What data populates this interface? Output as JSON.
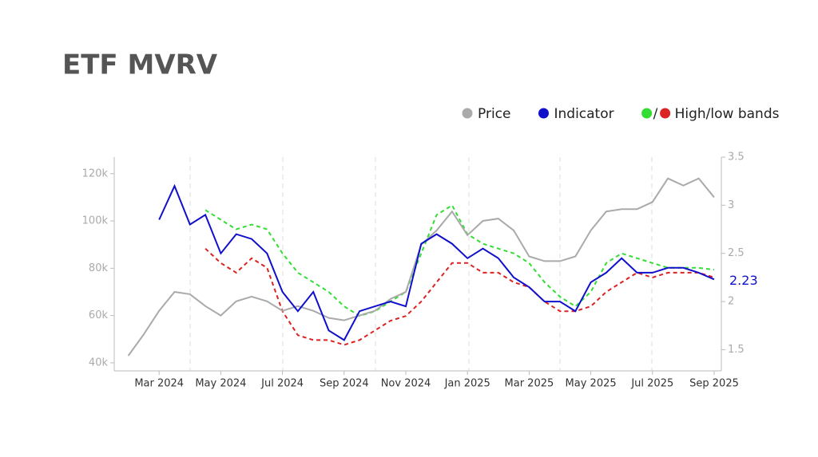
{
  "chart_data": {
    "type": "line",
    "title": "ETF MVRV",
    "categories": [
      null,
      null,
      "Mar 2024",
      null,
      null,
      null,
      "May 2024",
      null,
      null,
      null,
      "Jul 2024",
      null,
      null,
      null,
      "Sep 2024",
      null,
      null,
      null,
      "Nov 2024",
      null,
      null,
      null,
      "Jan 2025",
      null,
      null,
      null,
      "Mar 2025",
      null,
      null,
      null,
      "May 2025",
      null,
      null,
      null,
      "Jul 2025",
      null,
      null,
      null,
      "Sep 2025"
    ],
    "series": [
      {
        "name": "Price",
        "color": "#aaaaaa",
        "axis": "y",
        "values": [
          43000,
          52000,
          62000,
          70000,
          69000,
          64000,
          60000,
          66000,
          68000,
          66000,
          62000,
          64000,
          62000,
          59000,
          58000,
          60000,
          62000,
          67000,
          70000,
          90000,
          96000,
          104000,
          94000,
          100000,
          101000,
          96000,
          85000,
          83000,
          83000,
          85000,
          96000,
          104000,
          105000,
          105000,
          108000,
          118000,
          115000,
          118000,
          110000
        ]
      },
      {
        "name": "Indicator",
        "color": "#1010cc",
        "axis": "y2",
        "values": [
          null,
          null,
          2.85,
          3.2,
          2.8,
          2.9,
          2.5,
          2.7,
          2.65,
          2.5,
          2.1,
          1.9,
          2.1,
          1.7,
          1.6,
          1.9,
          1.95,
          2.0,
          1.95,
          2.6,
          2.7,
          2.6,
          2.45,
          2.55,
          2.45,
          2.25,
          2.15,
          2.0,
          2.0,
          1.9,
          2.2,
          2.3,
          2.45,
          2.3,
          2.3,
          2.35,
          2.35,
          2.3,
          2.23
        ]
      }
    ],
    "bands": {
      "name": "High/low bands",
      "axis": "y2",
      "high": {
        "color": "#33dd33",
        "values": [
          null,
          null,
          null,
          null,
          null,
          2.95,
          2.85,
          2.75,
          2.8,
          2.75,
          2.5,
          2.3,
          2.2,
          2.1,
          1.95,
          1.85,
          1.9,
          2.0,
          2.1,
          2.5,
          2.9,
          3.0,
          2.7,
          2.6,
          2.55,
          2.5,
          2.4,
          2.2,
          2.05,
          1.95,
          2.1,
          2.4,
          2.5,
          2.45,
          2.4,
          2.35,
          2.35,
          2.35,
          2.33
        ]
      },
      "low": {
        "color": "#dd2222",
        "values": [
          null,
          null,
          null,
          null,
          null,
          2.55,
          2.4,
          2.3,
          2.45,
          2.35,
          1.9,
          1.65,
          1.6,
          1.6,
          1.55,
          1.6,
          1.7,
          1.8,
          1.85,
          2.0,
          2.2,
          2.4,
          2.4,
          2.3,
          2.3,
          2.2,
          2.15,
          2.0,
          1.9,
          1.9,
          1.95,
          2.1,
          2.2,
          2.3,
          2.25,
          2.3,
          2.3,
          2.3,
          2.25
        ]
      }
    },
    "ylim": [
      36600,
      127000
    ],
    "yticks": [
      {
        "value": 40000,
        "label": "40k"
      },
      {
        "value": 60000,
        "label": "60k"
      },
      {
        "value": 80000,
        "label": "80k"
      },
      {
        "value": 100000,
        "label": "100k"
      },
      {
        "value": 120000,
        "label": "120k"
      }
    ],
    "y2lim": [
      1.28,
      3.5
    ],
    "y2ticks": [
      1.5,
      2,
      2.5,
      3,
      3.5
    ]
  }
}
